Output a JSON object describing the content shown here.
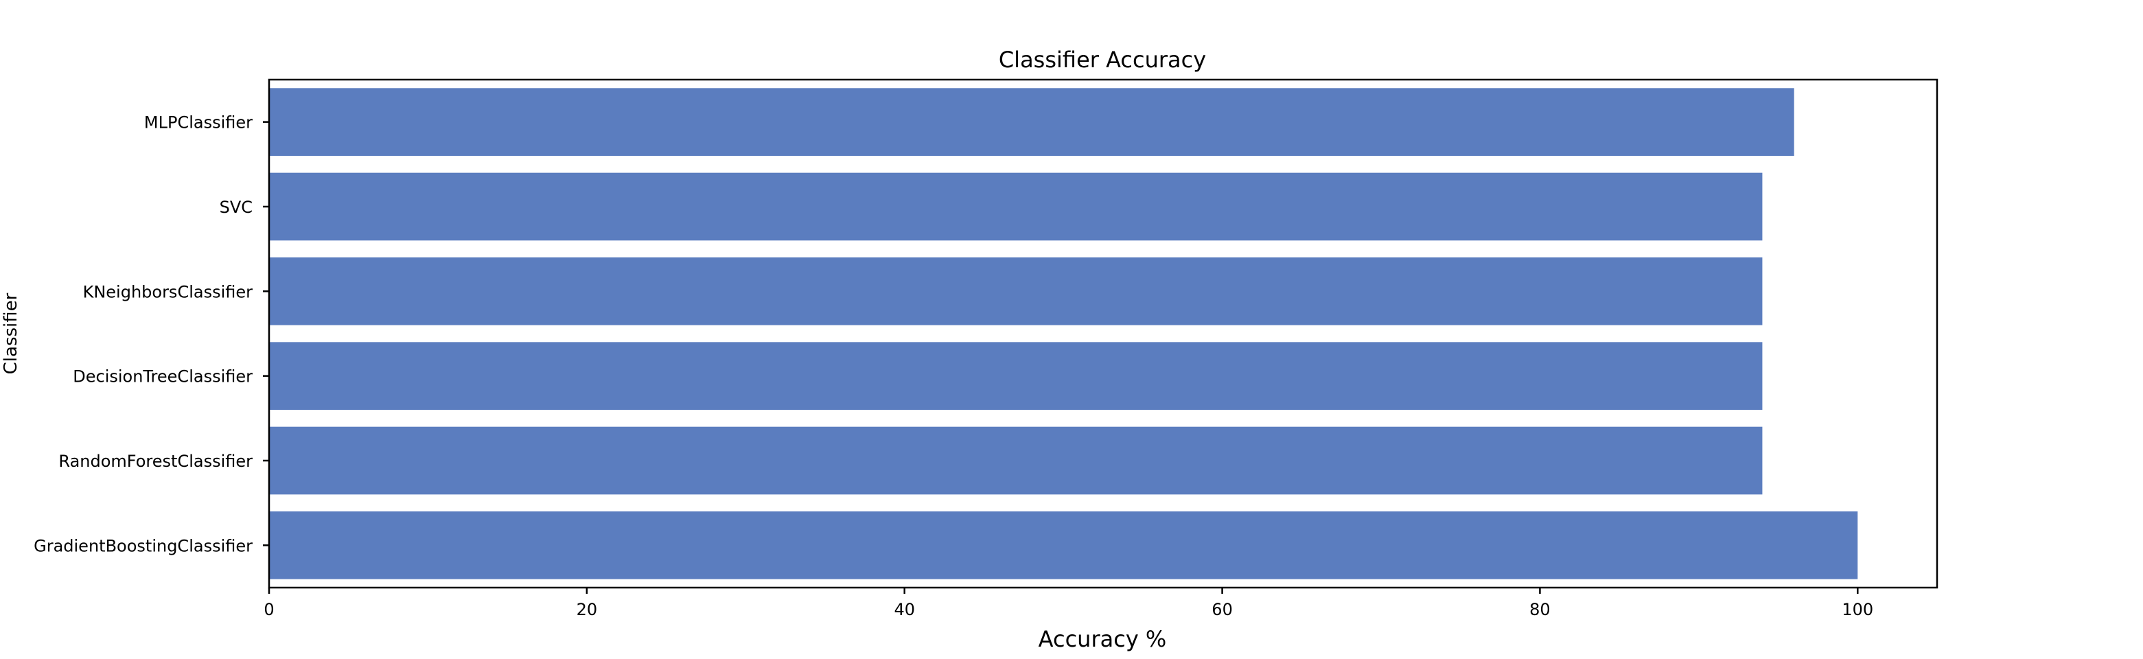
{
  "chart_data": {
    "type": "bar",
    "orientation": "horizontal",
    "title": "Classifier Accuracy",
    "xlabel": "Accuracy %",
    "ylabel": "Classifier",
    "categories": [
      "MLPClassifier",
      "SVC",
      "KNeighborsClassifier",
      "DecisionTreeClassifier",
      "RandomForestClassifier",
      "GradientBoostingClassifier"
    ],
    "values": [
      96,
      94,
      94,
      94,
      94,
      100
    ],
    "xlim": [
      0,
      105
    ],
    "xticks": [
      0,
      20,
      40,
      60,
      80,
      100
    ],
    "grid": false,
    "bar_color": "#5b7dbf"
  }
}
